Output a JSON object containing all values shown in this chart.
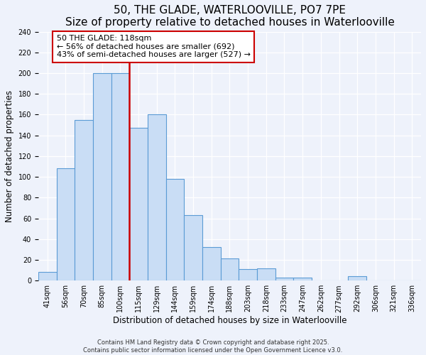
{
  "title": "50, THE GLADE, WATERLOOVILLE, PO7 7PE",
  "subtitle": "Size of property relative to detached houses in Waterlooville",
  "xlabel": "Distribution of detached houses by size in Waterlooville",
  "ylabel": "Number of detached properties",
  "bin_labels": [
    "41sqm",
    "56sqm",
    "70sqm",
    "85sqm",
    "100sqm",
    "115sqm",
    "129sqm",
    "144sqm",
    "159sqm",
    "174sqm",
    "188sqm",
    "203sqm",
    "218sqm",
    "233sqm",
    "247sqm",
    "262sqm",
    "277sqm",
    "292sqm",
    "306sqm",
    "321sqm",
    "336sqm"
  ],
  "bar_values": [
    8,
    108,
    155,
    200,
    200,
    147,
    160,
    98,
    63,
    32,
    21,
    11,
    12,
    3,
    3,
    0,
    0,
    4,
    0,
    0,
    0
  ],
  "bar_color": "#c9ddf5",
  "bar_edge_color": "#5b9bd5",
  "vline_color": "#cc0000",
  "annotation_text_line1": "50 THE GLADE: 118sqm",
  "annotation_text_line2": "← 56% of detached houses are smaller (692)",
  "annotation_text_line3": "43% of semi-detached houses are larger (527) →",
  "ylim": [
    0,
    240
  ],
  "yticks": [
    0,
    20,
    40,
    60,
    80,
    100,
    120,
    140,
    160,
    180,
    200,
    220,
    240
  ],
  "footer1": "Contains HM Land Registry data © Crown copyright and database right 2025.",
  "footer2": "Contains public sector information licensed under the Open Government Licence v3.0.",
  "bg_color": "#eef2fb",
  "title_fontsize": 11,
  "label_fontsize": 8.5,
  "tick_fontsize": 7,
  "annotation_fontsize": 8
}
